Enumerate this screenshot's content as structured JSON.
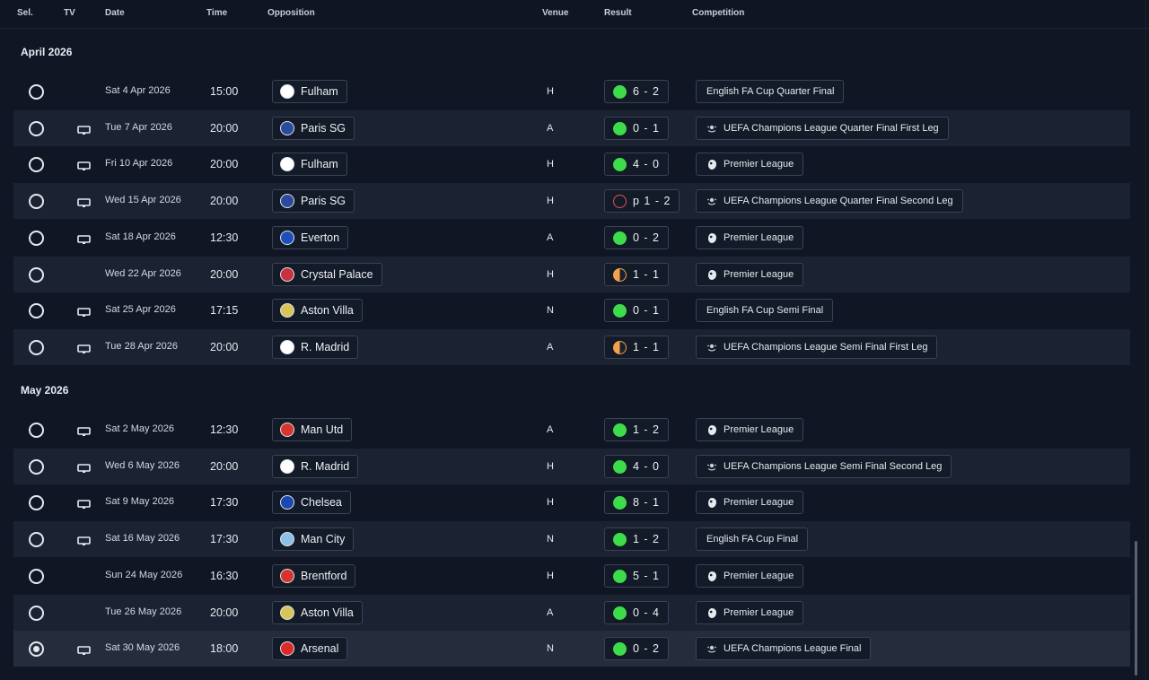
{
  "columns": {
    "sel": "Sel.",
    "tv": "TV",
    "date": "Date",
    "time": "Time",
    "opposition": "Opposition",
    "venue": "Venue",
    "result": "Result",
    "competition": "Competition"
  },
  "sections": [
    {
      "title": "April 2026",
      "matches": [
        {
          "tv": false,
          "date": "Sat 4 Apr 2026",
          "time": "15:00",
          "opponent": "Fulham",
          "crest": "fulham-crest",
          "venue": "H",
          "outcome": "win",
          "score": "6 - 2",
          "competition": "English FA Cup Quarter Final",
          "comp_icon": "none",
          "selected": false
        },
        {
          "tv": true,
          "date": "Tue 7 Apr 2026",
          "time": "20:00",
          "opponent": "Paris SG",
          "crest": "psg-crest",
          "venue": "A",
          "outcome": "win",
          "score": "0 - 1",
          "competition": "UEFA Champions League Quarter Final First Leg",
          "comp_icon": "ucl",
          "selected": false
        },
        {
          "tv": true,
          "date": "Fri 10 Apr 2026",
          "time": "20:00",
          "opponent": "Fulham",
          "crest": "fulham-crest",
          "venue": "H",
          "outcome": "win",
          "score": "4 - 0",
          "competition": "Premier League",
          "comp_icon": "pl",
          "selected": false
        },
        {
          "tv": true,
          "date": "Wed 15 Apr 2026",
          "time": "20:00",
          "opponent": "Paris SG",
          "crest": "psg-crest",
          "venue": "H",
          "outcome": "loss",
          "score": "p 1 - 2",
          "competition": "UEFA Champions League Quarter Final Second Leg",
          "comp_icon": "ucl",
          "selected": false
        },
        {
          "tv": true,
          "date": "Sat 18 Apr 2026",
          "time": "12:30",
          "opponent": "Everton",
          "crest": "everton-crest",
          "venue": "A",
          "outcome": "win",
          "score": "0 - 2",
          "competition": "Premier League",
          "comp_icon": "pl",
          "selected": false
        },
        {
          "tv": false,
          "date": "Wed 22 Apr 2026",
          "time": "20:00",
          "opponent": "Crystal Palace",
          "crest": "crystal-palace-crest",
          "venue": "H",
          "outcome": "draw",
          "score": "1 - 1",
          "competition": "Premier League",
          "comp_icon": "pl",
          "selected": false
        },
        {
          "tv": true,
          "date": "Sat 25 Apr 2026",
          "time": "17:15",
          "opponent": "Aston Villa",
          "crest": "aston-villa-crest",
          "venue": "N",
          "outcome": "win",
          "score": "0 - 1",
          "competition": "English FA Cup Semi Final",
          "comp_icon": "none",
          "selected": false
        },
        {
          "tv": true,
          "date": "Tue 28 Apr 2026",
          "time": "20:00",
          "opponent": "R. Madrid",
          "crest": "real-madrid-crest",
          "venue": "A",
          "outcome": "draw",
          "score": "1 - 1",
          "competition": "UEFA Champions League Semi Final First Leg",
          "comp_icon": "ucl",
          "selected": false
        }
      ]
    },
    {
      "title": "May 2026",
      "matches": [
        {
          "tv": true,
          "date": "Sat 2 May 2026",
          "time": "12:30",
          "opponent": "Man Utd",
          "crest": "man-utd-crest",
          "venue": "A",
          "outcome": "win",
          "score": "1 - 2",
          "competition": "Premier League",
          "comp_icon": "pl",
          "selected": false
        },
        {
          "tv": true,
          "date": "Wed 6 May 2026",
          "time": "20:00",
          "opponent": "R. Madrid",
          "crest": "real-madrid-crest",
          "venue": "H",
          "outcome": "win",
          "score": "4 - 0",
          "competition": "UEFA Champions League Semi Final Second Leg",
          "comp_icon": "ucl",
          "selected": false
        },
        {
          "tv": true,
          "date": "Sat 9 May 2026",
          "time": "17:30",
          "opponent": "Chelsea",
          "crest": "chelsea-crest",
          "venue": "H",
          "outcome": "win",
          "score": "8 - 1",
          "competition": "Premier League",
          "comp_icon": "pl",
          "selected": false
        },
        {
          "tv": true,
          "date": "Sat 16 May 2026",
          "time": "17:30",
          "opponent": "Man City",
          "crest": "man-city-crest",
          "venue": "N",
          "outcome": "win",
          "score": "1 - 2",
          "competition": "English FA Cup Final",
          "comp_icon": "none",
          "selected": false
        },
        {
          "tv": false,
          "date": "Sun 24 May 2026",
          "time": "16:30",
          "opponent": "Brentford",
          "crest": "brentford-crest",
          "venue": "H",
          "outcome": "win",
          "score": "5 - 1",
          "competition": "Premier League",
          "comp_icon": "pl",
          "selected": false
        },
        {
          "tv": false,
          "date": "Tue 26 May 2026",
          "time": "20:00",
          "opponent": "Aston Villa",
          "crest": "aston-villa-crest",
          "venue": "A",
          "outcome": "win",
          "score": "0 - 4",
          "competition": "Premier League",
          "comp_icon": "pl",
          "selected": false
        },
        {
          "tv": true,
          "date": "Sat 30 May 2026",
          "time": "18:00",
          "opponent": "Arsenal",
          "crest": "arsenal-crest",
          "venue": "N",
          "outcome": "win",
          "score": "0 - 2",
          "competition": "UEFA Champions League Final",
          "comp_icon": "ucl",
          "selected": true
        }
      ]
    }
  ],
  "colors": {
    "win": "#3ddc4a",
    "draw": "#f4a24a",
    "loss": "#e2555b",
    "fulham-crest": "#ffffff",
    "psg-crest": "#2b4a9b",
    "everton-crest": "#1d4fb8",
    "crystal-palace-crest": "#c8313e",
    "aston-villa-crest": "#d9c45a",
    "real-madrid-crest": "#ffffff",
    "man-utd-crest": "#d6362c",
    "chelsea-crest": "#1a47b0",
    "man-city-crest": "#8cc0e8",
    "brentford-crest": "#d5332f",
    "arsenal-crest": "#db2a2a"
  }
}
